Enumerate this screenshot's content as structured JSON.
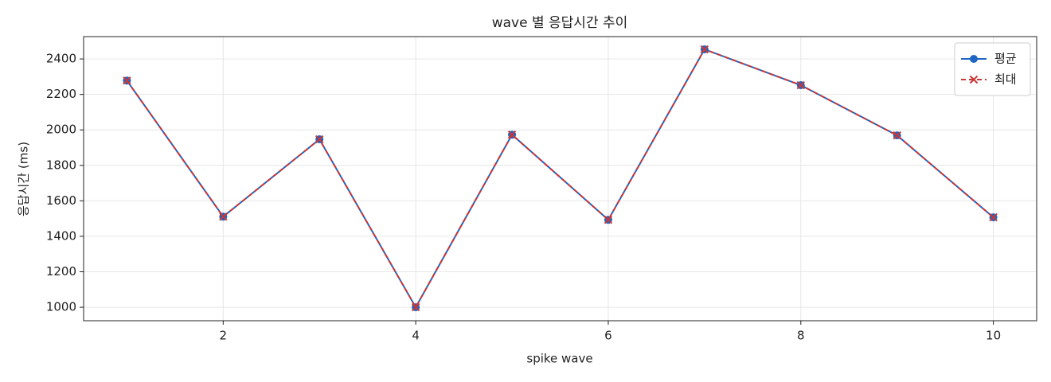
{
  "chart_data": {
    "type": "line",
    "title": "wave 별 응답시간 추이",
    "xlabel": "spike wave",
    "ylabel": "응답시간 (ms)",
    "x": [
      1,
      2,
      3,
      4,
      5,
      6,
      7,
      8,
      9,
      10
    ],
    "series": [
      {
        "name": "평균",
        "color": "#1f66c2",
        "linestyle": "solid",
        "marker": "circle",
        "values": [
          2278,
          1511,
          1947,
          1000,
          1973,
          1493,
          2454,
          2252,
          1969,
          1507
        ]
      },
      {
        "name": "최대",
        "color": "#c93838",
        "linestyle": "dashed",
        "marker": "x",
        "values": [
          2278,
          1511,
          1947,
          1000,
          1973,
          1493,
          2454,
          2252,
          1969,
          1507
        ]
      }
    ],
    "xlim": [
      0.55,
      10.45
    ],
    "xticks": [
      2,
      4,
      6,
      8,
      10
    ],
    "ylim": [
      924,
      2526
    ],
    "yticks": [
      1000,
      1200,
      1400,
      1600,
      1800,
      2000,
      2200,
      2400
    ],
    "grid": true,
    "legend": "upper right"
  }
}
